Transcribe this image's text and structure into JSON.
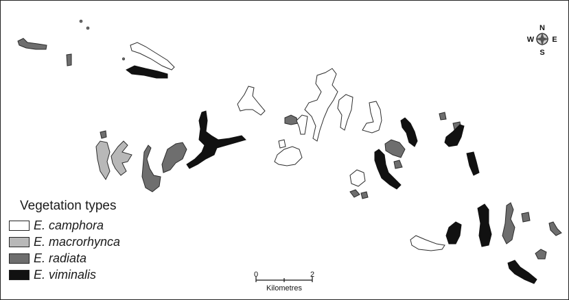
{
  "legend": {
    "title": "Vegetation types",
    "items": [
      {
        "label": "E. camphora",
        "color": "#ffffff"
      },
      {
        "label": "E. macrorhynca",
        "color": "#b8b8b8"
      },
      {
        "label": "E. radiata",
        "color": "#6e6e6e"
      },
      {
        "label": "E. viminalis",
        "color": "#111111"
      }
    ]
  },
  "scale_bar": {
    "start": "0",
    "end": "2",
    "unit": "Kilometres"
  },
  "compass": {
    "north": "N",
    "south": "S",
    "east": "E",
    "west": "W"
  },
  "colors": {
    "camphora": "#ffffff",
    "macrorhynca": "#b8b8b8",
    "radiata": "#6e6e6e",
    "viminalis": "#111111",
    "outline": "#2a2a2a"
  }
}
